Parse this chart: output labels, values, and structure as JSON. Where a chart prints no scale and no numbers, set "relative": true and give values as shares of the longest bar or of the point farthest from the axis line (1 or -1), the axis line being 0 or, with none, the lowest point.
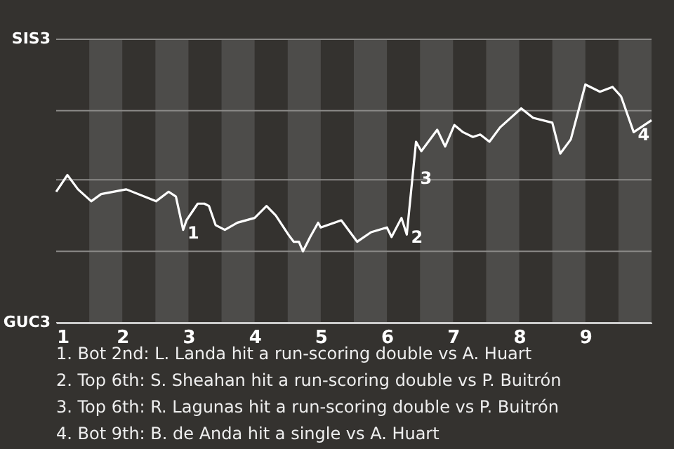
{
  "chart_data": {
    "type": "line",
    "relative": true,
    "x": [
      1.0,
      1.17,
      1.33,
      1.53,
      1.68,
      2.06,
      2.51,
      2.7,
      2.81,
      2.92,
      2.97,
      3.14,
      3.24,
      3.31,
      3.41,
      3.55,
      3.74,
      4.0,
      4.18,
      4.32,
      4.51,
      4.59,
      4.67,
      4.73,
      4.84,
      4.96,
      5.0,
      5.31,
      5.55,
      5.76,
      6.0,
      6.07,
      6.22,
      6.3,
      6.44,
      6.52,
      6.76,
      6.88,
      7.02,
      7.15,
      7.3,
      7.41,
      7.55,
      7.71,
      8.03,
      8.21,
      8.5,
      8.62,
      8.78,
      9.0,
      9.22,
      9.41,
      9.54,
      9.73,
      10.0
    ],
    "series": [
      {
        "color": "#ffffff",
        "values": [
          0.55,
          0.62,
          0.56,
          0.51,
          0.54,
          0.56,
          0.51,
          0.55,
          0.53,
          0.39,
          0.43,
          0.5,
          0.5,
          0.49,
          0.41,
          0.39,
          0.42,
          0.44,
          0.49,
          0.45,
          0.37,
          0.34,
          0.34,
          0.3,
          0.36,
          0.42,
          0.4,
          0.43,
          0.34,
          0.38,
          0.4,
          0.36,
          0.44,
          0.37,
          0.76,
          0.72,
          0.81,
          0.74,
          0.83,
          0.8,
          0.78,
          0.79,
          0.76,
          0.82,
          0.9,
          0.86,
          0.84,
          0.71,
          0.77,
          1,
          0.97,
          0.99,
          0.95,
          0.8,
          0.85
        ]
      }
    ],
    "xlim": [
      1,
      10
    ],
    "xticks": [
      1,
      2,
      3,
      4,
      5,
      6,
      7,
      8,
      9
    ],
    "ref_lines": [
      {
        "axis": "y",
        "value": 0,
        "label": "GUC3",
        "color": "#cccccc"
      },
      {
        "axis": "y",
        "value": 0.3,
        "label": null,
        "color": "#8a8987"
      },
      {
        "axis": "y",
        "value": 0.6,
        "label": null,
        "color": "#8a8987"
      },
      {
        "axis": "y",
        "value": 0.89,
        "label": null,
        "color": "#8a8987"
      },
      {
        "axis": "y",
        "value": 1.19,
        "label": "SIS3",
        "color": "#8a8987"
      }
    ],
    "bands": [
      {
        "axis": "x",
        "from": 1.5,
        "to": 2,
        "label": null,
        "color": "#4d4c4a"
      },
      {
        "axis": "x",
        "from": 2.5,
        "to": 3,
        "label": null,
        "color": "#4d4c4a"
      },
      {
        "axis": "x",
        "from": 3.5,
        "to": 4,
        "label": null,
        "color": "#4d4c4a"
      },
      {
        "axis": "x",
        "from": 4.5,
        "to": 5,
        "label": null,
        "color": "#4d4c4a"
      },
      {
        "axis": "x",
        "from": 5.5,
        "to": 6,
        "label": null,
        "color": "#4d4c4a"
      },
      {
        "axis": "x",
        "from": 6.5,
        "to": 7,
        "label": null,
        "color": "#4d4c4a"
      },
      {
        "axis": "x",
        "from": 7.5,
        "to": 8,
        "label": null,
        "color": "#4d4c4a"
      },
      {
        "axis": "x",
        "from": 8.5,
        "to": 9,
        "label": null,
        "color": "#4d4c4a"
      },
      {
        "axis": "x",
        "from": 9.5,
        "to": 10,
        "label": null,
        "color": "#4d4c4a"
      }
    ],
    "annotations": [
      {
        "text": "1",
        "x": 2.92,
        "y": 0.39
      },
      {
        "text": "2",
        "x": 6.3,
        "y": 0.37
      },
      {
        "text": "3",
        "x": 6.44,
        "y": 0.62
      },
      {
        "text": "4",
        "x": 9.73,
        "y": 0.8
      },
      "1. Bot 2nd: L. Landa hit a run-scoring double vs A. Huart",
      "2. Top 6th: S. Sheahan hit a run-scoring double vs P. Buitrón",
      "3. Top 6th: R. Lagunas hit a run-scoring double vs P. Buitrón",
      "4. Bot 9th: B. de Anda hit a single vs A. Huart"
    ]
  }
}
